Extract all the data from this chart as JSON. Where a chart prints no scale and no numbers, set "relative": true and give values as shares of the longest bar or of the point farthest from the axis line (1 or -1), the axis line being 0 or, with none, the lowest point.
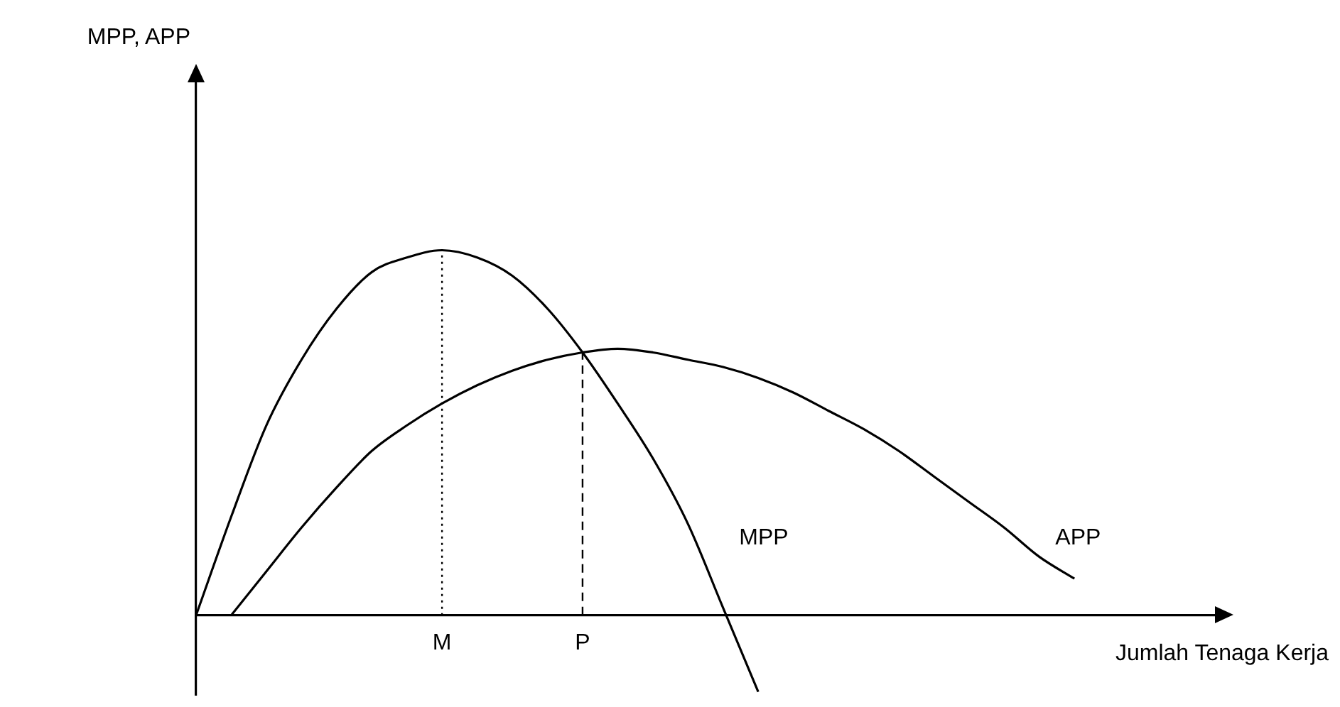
{
  "chart_data": {
    "type": "line",
    "relative": true,
    "annotations": [
      "MPP, APP"
    ],
    "xlabel": "Jumlah Tenaga Kerja",
    "categories": [
      null,
      null,
      null,
      null,
      null,
      null,
      null,
      "M",
      null,
      null,
      null,
      "P",
      null,
      null,
      null,
      null,
      null,
      null,
      null,
      null,
      null,
      null,
      null,
      null,
      null,
      null,
      null,
      null,
      null,
      null
    ],
    "grid": false,
    "legend": false,
    "marker": "none",
    "line_style": "solid",
    "series": [
      {
        "name": "MPP",
        "color": "#000000",
        "values": [
          0,
          0.27,
          0.52,
          0.7,
          0.84,
          0.94,
          0.98,
          1,
          0.98,
          0.93,
          0.84,
          0.72,
          0.58,
          0.43,
          0.25,
          0.02,
          -0.21,
          null,
          null,
          null,
          null,
          null,
          null,
          null,
          null,
          null,
          null,
          null,
          null,
          null
        ]
      },
      {
        "name": "APP",
        "color": "#000000",
        "values": [
          null,
          0,
          0.12,
          0.24,
          0.35,
          0.45,
          0.52,
          0.58,
          0.63,
          0.67,
          0.7,
          0.72,
          0.73,
          0.72,
          0.7,
          0.68,
          0.65,
          0.61,
          0.56,
          0.51,
          0.45,
          0.38,
          0.31,
          0.24,
          0.16,
          0.1,
          null,
          null,
          null,
          null
        ]
      }
    ],
    "ref_lines": [
      {
        "axis": "x",
        "value": "M",
        "color": "#000000",
        "line_style": "dotted"
      },
      {
        "axis": "x",
        "value": "P",
        "color": "#000000",
        "line_style": "dashed"
      }
    ]
  }
}
